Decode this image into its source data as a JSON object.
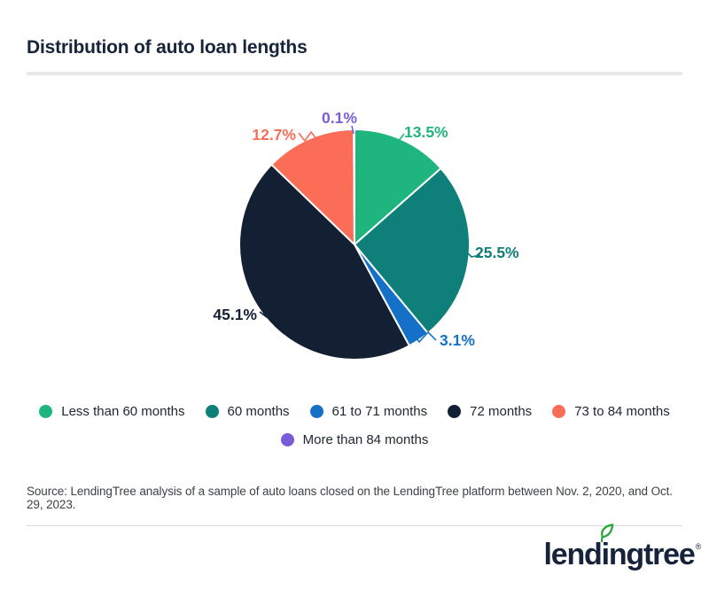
{
  "header": {
    "title": "Distribution of auto loan lengths"
  },
  "chart_data": {
    "type": "pie",
    "title": "Distribution of auto loan lengths",
    "unit": "percent",
    "start_angle_deg": 0,
    "direction": "clockwise",
    "legend_position": "bottom",
    "segments": [
      {
        "label": "Less than 60 months",
        "value": 13.5,
        "display": "13.5%",
        "color": "#1eb57f"
      },
      {
        "label": "60 months",
        "value": 25.5,
        "display": "25.5%",
        "color": "#0e7f79"
      },
      {
        "label": "61 to 71 months",
        "value": 3.1,
        "display": "3.1%",
        "color": "#1471c7"
      },
      {
        "label": "72 months",
        "value": 45.1,
        "display": "45.1%",
        "color": "#131f33"
      },
      {
        "label": "73 to 84 months",
        "value": 12.7,
        "display": "12.7%",
        "color": "#fb6d57"
      },
      {
        "label": "More than 84 months",
        "value": 0.1,
        "display": "0.1%",
        "color": "#7a5cd8"
      }
    ]
  },
  "source": {
    "text": "Source: LendingTree analysis of a sample of auto loans closed on the LendingTree platform between Nov. 2, 2020, and Oct. 29, 2023."
  },
  "logo": {
    "part1": "lend",
    "part2": "i",
    "part3": "ngtree",
    "registered": "®",
    "leaf_color": "#28a63c",
    "text_color": "#16233a"
  },
  "colors": {
    "title": "#17243a",
    "legend_text": "#202731",
    "source_text": "#3d4148",
    "divider_thick": "#e9e9e9",
    "divider_thin": "#d9d9d9",
    "background": "#ffffff"
  }
}
